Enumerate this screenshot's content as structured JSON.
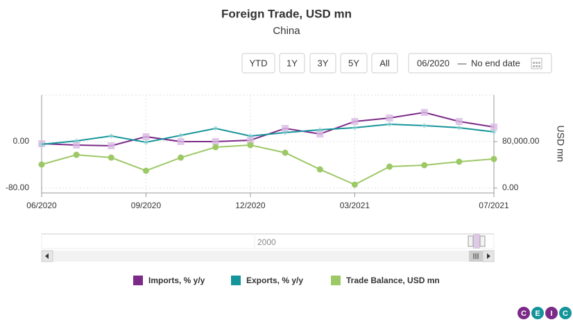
{
  "chart_data": {
    "type": "line",
    "title": "Foreign Trade, USD mn",
    "subtitle": "China",
    "categories": [
      "06/2020",
      null,
      null,
      "09/2020",
      null,
      null,
      "12/2020",
      null,
      null,
      "03/2021",
      null,
      null,
      null,
      "07/2021"
    ],
    "series": [
      {
        "name": "Imports, % y/y",
        "color": "#7b2a87",
        "marker_color": "#d9b9e3",
        "axis": "y",
        "values": [
          -3.6,
          -6,
          -7.2,
          8.4,
          0,
          0,
          2.4,
          22.7,
          13.1,
          34.6,
          40.6,
          50.1,
          34.6,
          25.1
        ]
      },
      {
        "name": "Exports, % y/y",
        "color": "#15959a",
        "marker_color": "#8fd3d3",
        "axis": "y",
        "values": [
          -4.8,
          1.2,
          9.6,
          -1.2,
          10.7,
          22.7,
          9.6,
          15.5,
          20.3,
          23.9,
          29.9,
          27.5,
          23.9,
          16.7
        ]
      },
      {
        "name": "Trade Balance, USD mn",
        "color": "#9dc866",
        "marker_color": "#9dc866",
        "axis": "y2",
        "values": [
          40600,
          57300,
          52500,
          29900,
          52500,
          70400,
          74000,
          60900,
          32200,
          6000,
          37000,
          39400,
          45400,
          50100
        ]
      }
    ],
    "ylim": [
      -88.4,
      80
    ],
    "yticks": [
      {
        "value": -80,
        "label": "-80.00"
      },
      {
        "value": 0,
        "label": "0.00"
      }
    ],
    "y2lim": [
      -8358,
      160000
    ],
    "y2ticks": [
      {
        "value": 0,
        "label": "0.00"
      },
      {
        "value": 80000,
        "label": "80,000.00"
      }
    ],
    "y2label": "USD mn",
    "grid": true
  },
  "controls": {
    "range_buttons": [
      "YTD",
      "1Y",
      "3Y",
      "5Y",
      "All"
    ],
    "date_from": "06/2020",
    "date_separator": "—",
    "date_to": "No end date"
  },
  "navigator": {
    "label": "2000"
  },
  "logo": [
    "C",
    "E",
    "I",
    "C"
  ]
}
